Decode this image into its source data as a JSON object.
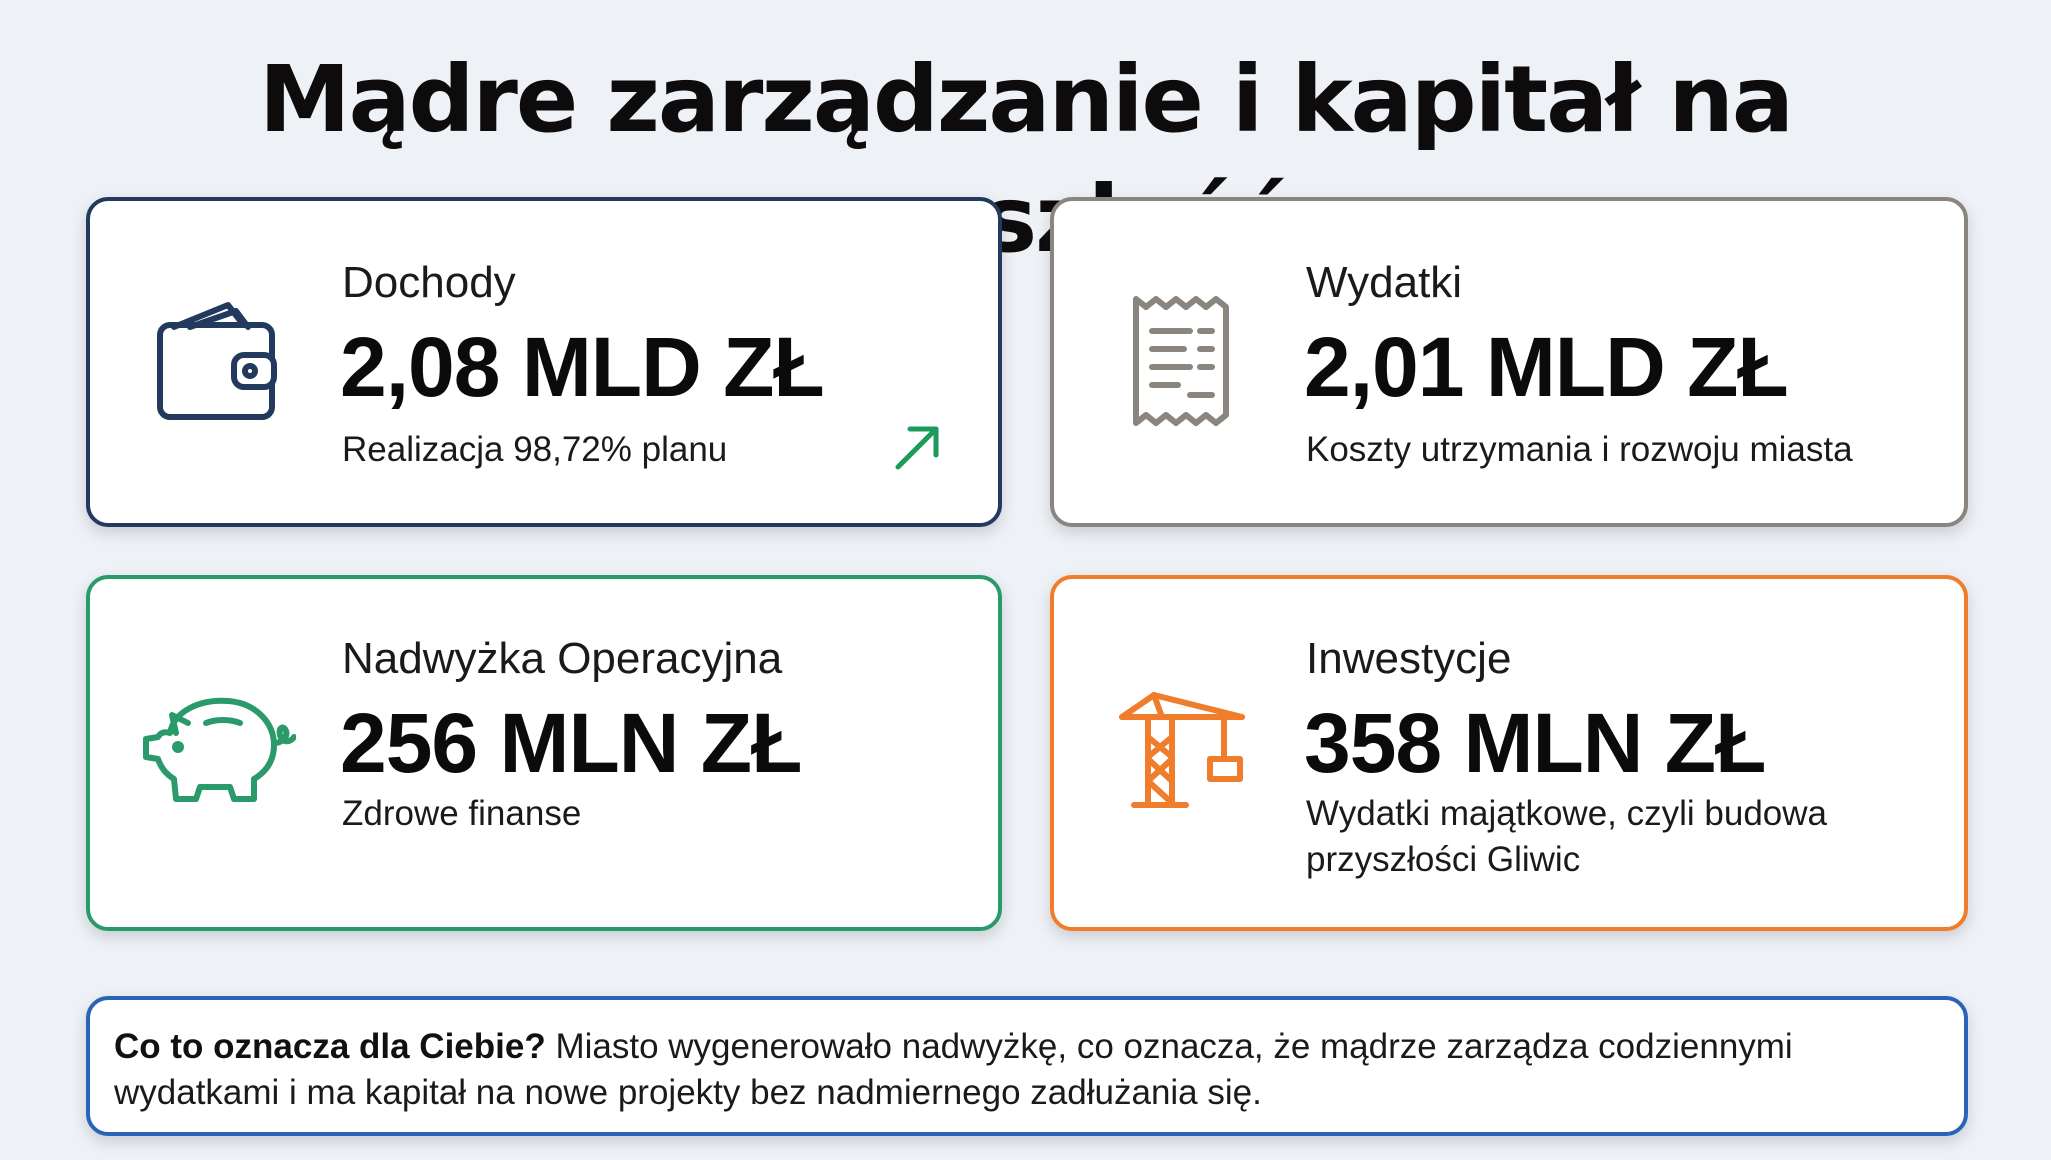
{
  "title": "Mądre zarządzanie i kapitał na przyszłość",
  "cards": [
    {
      "label": "Dochody",
      "value": "2,08 MLD ZŁ",
      "description": "Realizacja 98,72% planu",
      "icon": "wallet-icon",
      "trend_icon": "arrow-up-right-icon",
      "color": "#233a5e"
    },
    {
      "label": "Wydatki",
      "value": "2,01 MLD ZŁ",
      "description": "Koszty utrzymania i rozwoju miasta",
      "icon": "receipt-icon",
      "color": "#8b857f"
    },
    {
      "label": "Nadwyżka Operacyjna",
      "value": "256 MLN ZŁ",
      "description": "Zdrowe finanse",
      "icon": "piggy-bank-icon",
      "color": "#2a9a6a"
    },
    {
      "label": "Inwestycje",
      "value": "358 MLN ZŁ",
      "description": "Wydatki majątkowe, czyli budowa przyszłości Gliwic",
      "icon": "crane-icon",
      "color": "#ef7d2c"
    }
  ],
  "note": {
    "lead": "Co to oznacza dla Ciebie?",
    "text": " Miasto wygenerowało nadwyżkę, co oznacza, że mądrze zarządza codziennymi wydatkami i ma kapitał na nowe projekty bez nadmiernego zadłużania się.",
    "color": "#2a64b8"
  }
}
